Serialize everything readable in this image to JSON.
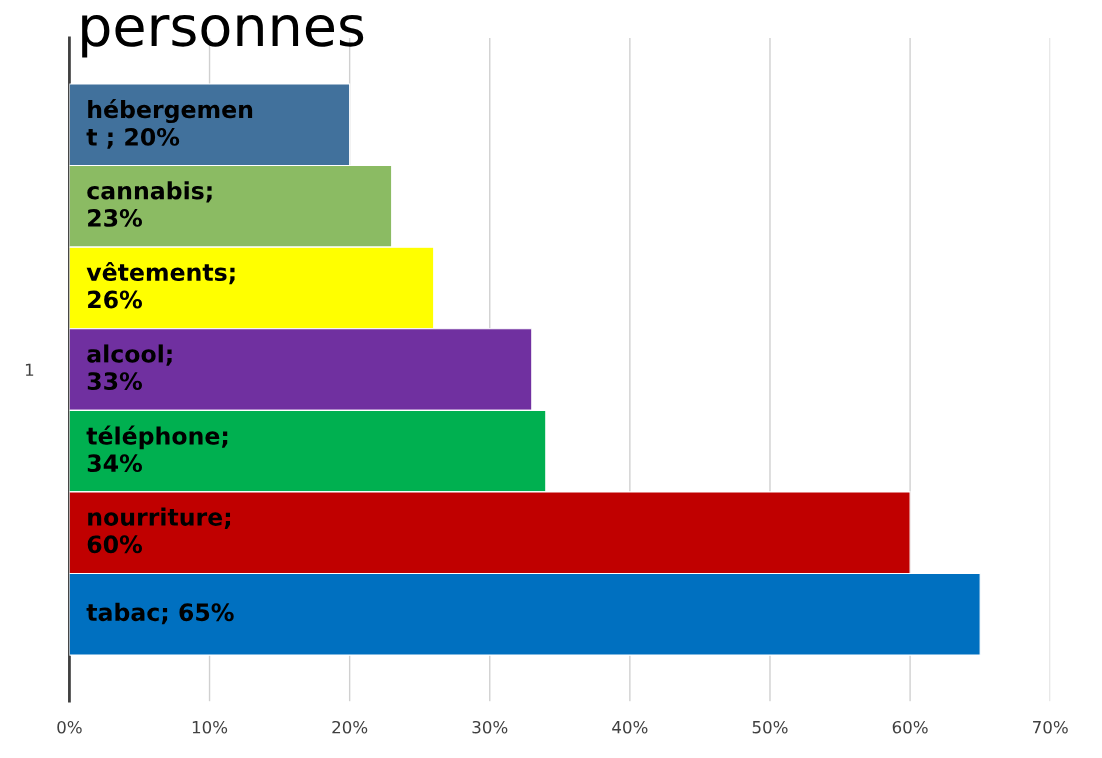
{
  "chart_data": {
    "type": "bar",
    "orientation": "horizontal",
    "title": "personnes",
    "categories": [
      "1"
    ],
    "series": [
      {
        "color": "#41719c",
        "values": [
          20
        ],
        "value_labels": [
          "hébergemen\nt ; 20%"
        ]
      },
      {
        "color": "#8bbb63",
        "values": [
          23
        ],
        "value_labels": [
          "cannabis;\n23%"
        ]
      },
      {
        "color": "#ffff00",
        "values": [
          26
        ],
        "value_labels": [
          "vêtements;\n26%"
        ]
      },
      {
        "color": "#7030a0",
        "values": [
          33
        ],
        "value_labels": [
          "alcool;\n33%"
        ]
      },
      {
        "color": "#00b050",
        "values": [
          34
        ],
        "value_labels": [
          "téléphone;\n34%"
        ]
      },
      {
        "color": "#c00000",
        "values": [
          60
        ],
        "value_labels": [
          "nourriture;\n60%"
        ]
      },
      {
        "color": "#0070c0",
        "values": [
          65
        ],
        "value_labels": [
          "tabac; 65%"
        ]
      }
    ],
    "xlim": [
      0,
      70
    ],
    "xticks": [
      {
        "value": 0,
        "label": "0%"
      },
      {
        "value": 10,
        "label": "10%"
      },
      {
        "value": 20,
        "label": "20%"
      },
      {
        "value": 30,
        "label": "30%"
      },
      {
        "value": 40,
        "label": "40%"
      },
      {
        "value": 50,
        "label": "50%"
      },
      {
        "value": 60,
        "label": "60%"
      },
      {
        "value": 70,
        "label": "70%"
      }
    ],
    "grid": "x",
    "legend": false
  }
}
